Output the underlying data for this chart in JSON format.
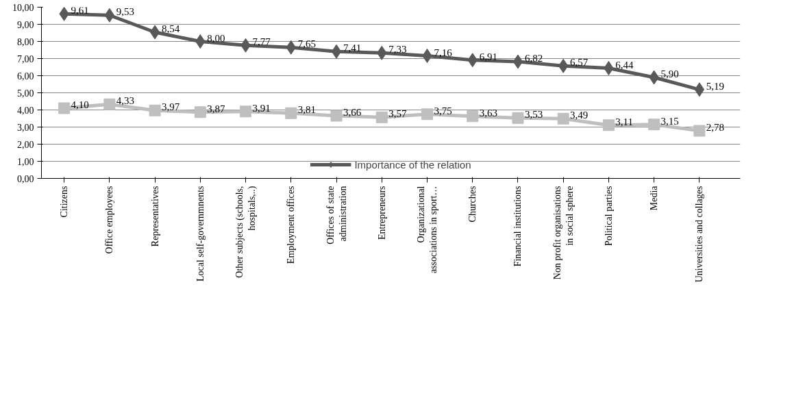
{
  "chart_data": {
    "type": "line",
    "categories": [
      "Citizens",
      "Office employees",
      "Representatives",
      "Local self-governmnents",
      "Other subjects (schools,\nhospitals,..)",
      "Employment offices",
      "Offices of state\nadministration",
      "Entrepreneurs",
      "Organizational\nassociations in sport…",
      "Churches",
      "Financial institutions",
      "Non profit organisations\nin social sphere",
      "Political parties",
      "Media",
      "Universities and collages"
    ],
    "series": [
      {
        "name": "Importance of the relation",
        "color": "#595959",
        "marker": "diamond",
        "values": [
          9.61,
          9.53,
          8.54,
          8.0,
          7.77,
          7.65,
          7.41,
          7.33,
          7.16,
          6.91,
          6.82,
          6.57,
          6.44,
          5.9,
          5.19
        ],
        "value_labels": [
          "9,61",
          "9,53",
          "8,54",
          "8,00",
          "7,77",
          "7,65",
          "7,41",
          "7,33",
          "7,16",
          "6,91",
          "6,82",
          "6,57",
          "6,44",
          "5,90",
          "5,19"
        ]
      },
      {
        "color": "#bfbfbf",
        "marker": "square",
        "values": [
          4.1,
          4.33,
          3.97,
          3.87,
          3.91,
          3.81,
          3.66,
          3.57,
          3.75,
          3.63,
          3.53,
          3.49,
          3.11,
          3.15,
          2.78
        ],
        "value_labels": [
          "4,10",
          "4,33",
          "3,97",
          "3,87",
          "3,91",
          "3,81",
          "3,66",
          "3,57",
          "3,75",
          "3,63",
          "3,53",
          "3,49",
          "3,11",
          "3,15",
          "2,78"
        ]
      }
    ],
    "ylim": [
      0,
      10
    ],
    "yticks": [
      {
        "value": 0,
        "label": "0,00"
      },
      {
        "value": 1,
        "label": "1,00"
      },
      {
        "value": 2,
        "label": "2,00"
      },
      {
        "value": 3,
        "label": "3,00"
      },
      {
        "value": 4,
        "label": "4,00"
      },
      {
        "value": 5,
        "label": "5,00"
      },
      {
        "value": 6,
        "label": "6,00"
      },
      {
        "value": 7,
        "label": "7,00"
      },
      {
        "value": 8,
        "label": "8,00"
      },
      {
        "value": 9,
        "label": "9,00"
      },
      {
        "value": 10,
        "label": "10,00"
      }
    ],
    "grid": "y",
    "legend": "bottom"
  }
}
